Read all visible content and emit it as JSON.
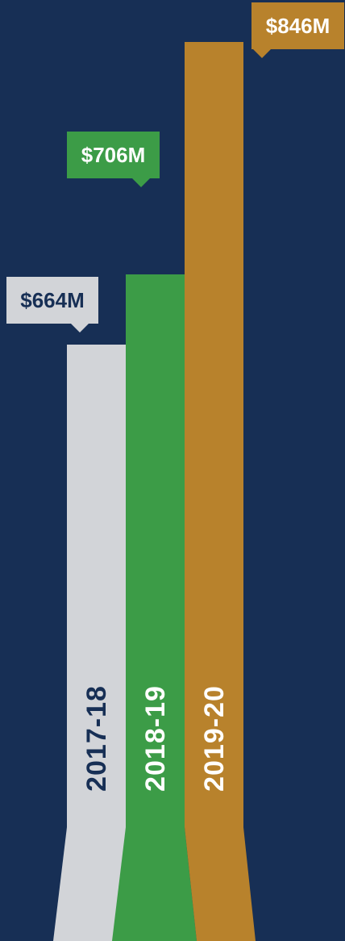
{
  "chart_data": {
    "type": "bar",
    "categories": [
      "2017-18",
      "2018-19",
      "2019-20"
    ],
    "values": [
      664,
      706,
      846
    ],
    "value_labels": [
      "$664M",
      "$706M",
      "$846M"
    ],
    "colors": [
      "#d2d4d8",
      "#3c9c47",
      "#b8822c"
    ],
    "label_text_colors": [
      "#172f55",
      "#ffffff",
      "#ffffff"
    ],
    "background": "#172f55",
    "grid": false,
    "legend": "none"
  }
}
